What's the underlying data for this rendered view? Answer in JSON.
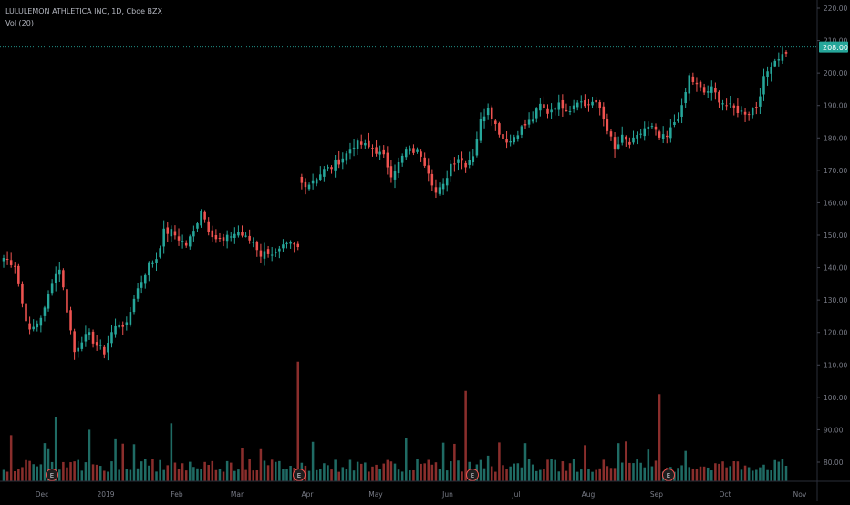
{
  "header": {
    "symbol_line": "LULULEMON ATHLETICA INC, 1D, Cboe BZX",
    "indicator_line": "Vol (20)"
  },
  "colors": {
    "background": "#000000",
    "up": "#26a69a",
    "down": "#ef5350",
    "up_volume": "#1f6b64",
    "down_volume": "#8a2e2c",
    "axis_text": "#787b86",
    "last_price_line": "#26a69a",
    "earnings_marker_bg": "#1e1e1e"
  },
  "price_axis": {
    "ticks": [
      "220.00",
      "210.00",
      "200.00",
      "190.00",
      "180.00",
      "170.00",
      "160.00",
      "150.00",
      "140.00",
      "130.00",
      "120.00",
      "110.00",
      "100.00",
      "90.00",
      "80.00"
    ],
    "last_price_label": "208.00"
  },
  "time_axis": {
    "labels": [
      "Dec",
      "2019",
      "Feb",
      "Mar",
      "Apr",
      "May",
      "Jun",
      "Jul",
      "Aug",
      "Sep",
      "Oct",
      "Nov"
    ]
  },
  "earnings_markers": {
    "label": "E",
    "count": 4
  },
  "chart_data": {
    "type": "candlestick",
    "title": "LULULEMON ATHLETICA INC, 1D, Cboe BZX",
    "ylim": [
      75,
      222
    ],
    "scale": "linear",
    "grid": false,
    "last_price": 208.0,
    "x": [
      "Dec",
      "2019",
      "Feb",
      "Mar",
      "Apr",
      "May",
      "Jun",
      "Jul",
      "Aug",
      "Sep",
      "Oct",
      "Nov"
    ],
    "close_path_anchors": [
      [
        0,
        143
      ],
      [
        3,
        141
      ],
      [
        5,
        129
      ],
      [
        7,
        120
      ],
      [
        9,
        123
      ],
      [
        11,
        127
      ],
      [
        13,
        136
      ],
      [
        15,
        140
      ],
      [
        17,
        127
      ],
      [
        19,
        114
      ],
      [
        21,
        118
      ],
      [
        23,
        119
      ],
      [
        25,
        116
      ],
      [
        27,
        114
      ],
      [
        29,
        120
      ],
      [
        31,
        123
      ],
      [
        33,
        122
      ],
      [
        35,
        131
      ],
      [
        37,
        136
      ],
      [
        39,
        141
      ],
      [
        41,
        143
      ],
      [
        43,
        151
      ],
      [
        45,
        151
      ],
      [
        47,
        149
      ],
      [
        49,
        147
      ],
      [
        51,
        151
      ],
      [
        53,
        158
      ],
      [
        55,
        152
      ],
      [
        57,
        149
      ],
      [
        59,
        148
      ],
      [
        61,
        150
      ],
      [
        63,
        151
      ],
      [
        65,
        149
      ],
      [
        67,
        148
      ],
      [
        69,
        144
      ],
      [
        71,
        145
      ],
      [
        73,
        144
      ],
      [
        75,
        146
      ],
      [
        77,
        147
      ],
      [
        79,
        146
      ],
      [
        80,
        166
      ],
      [
        82,
        166
      ],
      [
        84,
        168
      ],
      [
        86,
        170
      ],
      [
        88,
        171
      ],
      [
        90,
        173
      ],
      [
        92,
        175
      ],
      [
        94,
        178
      ],
      [
        96,
        178
      ],
      [
        98,
        177
      ],
      [
        100,
        176
      ],
      [
        102,
        174
      ],
      [
        104,
        169
      ],
      [
        106,
        172
      ],
      [
        108,
        176
      ],
      [
        110,
        176
      ],
      [
        112,
        175
      ],
      [
        114,
        170
      ],
      [
        116,
        163
      ],
      [
        118,
        165
      ],
      [
        120,
        172
      ],
      [
        122,
        174
      ],
      [
        124,
        172
      ],
      [
        126,
        175
      ],
      [
        128,
        185
      ],
      [
        130,
        190
      ],
      [
        132,
        184
      ],
      [
        134,
        180
      ],
      [
        136,
        179
      ],
      [
        138,
        182
      ],
      [
        140,
        184
      ],
      [
        142,
        186
      ],
      [
        144,
        190
      ],
      [
        146,
        188
      ],
      [
        148,
        190
      ],
      [
        150,
        190
      ],
      [
        152,
        189
      ],
      [
        154,
        192
      ],
      [
        156,
        190
      ],
      [
        158,
        191
      ],
      [
        160,
        189
      ],
      [
        162,
        183
      ],
      [
        164,
        176
      ],
      [
        166,
        180
      ],
      [
        168,
        178
      ],
      [
        170,
        180
      ],
      [
        172,
        183
      ],
      [
        174,
        183
      ],
      [
        176,
        180
      ],
      [
        178,
        180
      ],
      [
        180,
        185
      ],
      [
        182,
        189
      ],
      [
        184,
        199
      ],
      [
        186,
        196
      ],
      [
        188,
        194
      ],
      [
        190,
        195
      ],
      [
        192,
        192
      ],
      [
        194,
        190
      ],
      [
        196,
        189
      ],
      [
        198,
        188
      ],
      [
        200,
        188
      ],
      [
        202,
        190
      ],
      [
        204,
        198
      ],
      [
        206,
        203
      ],
      [
        208,
        205
      ],
      [
        210,
        206
      ]
    ],
    "volume_ylim": [
      75,
      112
    ],
    "volume_peaks": [
      {
        "x_label_near": "Dec",
        "value": 94
      },
      {
        "x_label_near": "Dec",
        "value": 90
      },
      {
        "x_label_near": "2019",
        "value": 92
      },
      {
        "x_label_near": "Apr",
        "value": 111
      },
      {
        "x_label_near": "Jun",
        "value": 102
      },
      {
        "x_label_near": "Sep",
        "value": 101
      }
    ],
    "volume_typical": 77
  }
}
